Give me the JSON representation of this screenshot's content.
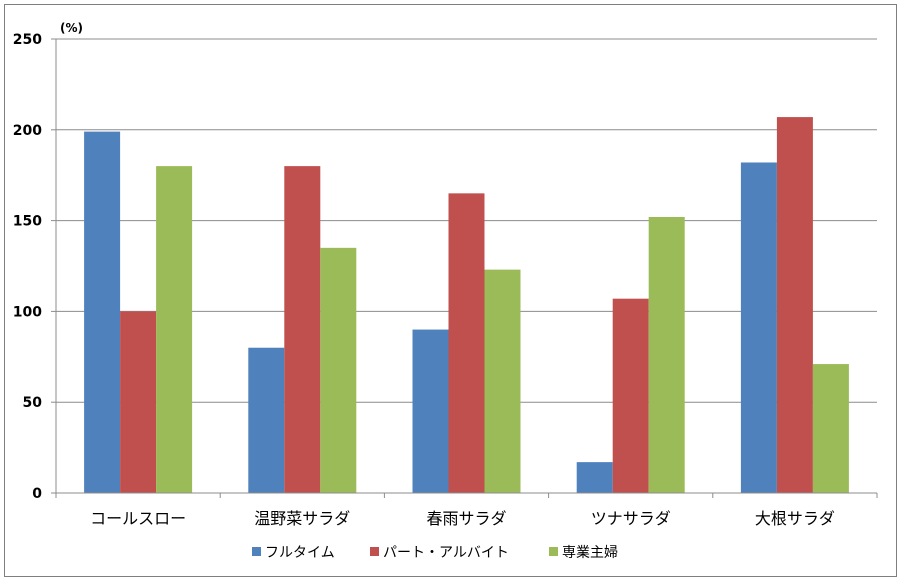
{
  "chart_data": {
    "type": "bar",
    "unit_label": "(%)",
    "categories": [
      "コールスロー",
      "温野菜サラダ",
      "春雨サラダ",
      "ツナサラダ",
      "大根サラダ"
    ],
    "series": [
      {
        "name": "フルタイム",
        "color": "#4f81bd",
        "values": [
          199,
          80,
          90,
          17,
          182
        ]
      },
      {
        "name": "パート・アルバイト",
        "color": "#c0504d",
        "values": [
          100,
          180,
          165,
          107,
          207
        ]
      },
      {
        "name": "専業主婦",
        "color": "#9bbb59",
        "values": [
          180,
          135,
          123,
          152,
          71
        ]
      }
    ],
    "ylim": [
      0,
      250
    ],
    "yticks": [
      0,
      50,
      100,
      150,
      200,
      250
    ],
    "grid": true,
    "legend_position": "bottom"
  }
}
